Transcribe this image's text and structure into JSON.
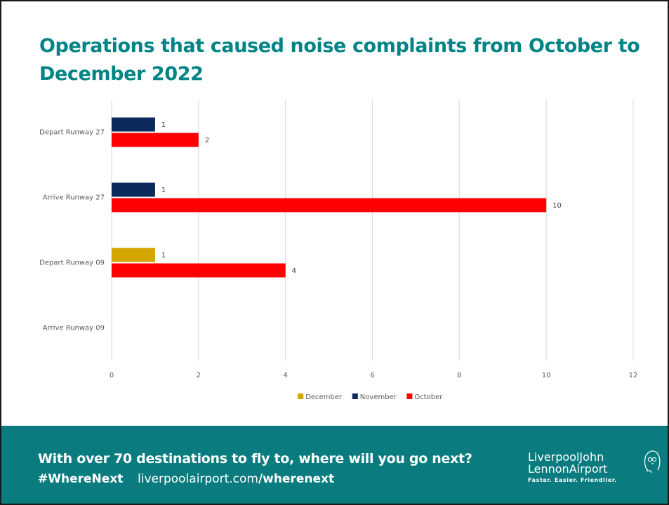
{
  "slide": {
    "title": "Operations that caused noise complaints from October to December 2022"
  },
  "theme": {
    "title_color": "#008486",
    "footer_bg": "#0a7b7f",
    "grid_color": "#d9d9d9",
    "axis_text_color": "#595959"
  },
  "chart_data": {
    "type": "bar",
    "orientation": "horizontal",
    "categories": [
      "Depart Runway 27",
      "Arrive Runway 27",
      "Depart Runway 09",
      "Arrive Runway 09"
    ],
    "series": [
      {
        "name": "December",
        "color": "#d4a400",
        "values": [
          null,
          null,
          1,
          null
        ]
      },
      {
        "name": "November",
        "color": "#0d2a5c",
        "values": [
          1,
          1,
          null,
          null
        ]
      },
      {
        "name": "October",
        "color": "#ff0000",
        "values": [
          2,
          10,
          4,
          null
        ]
      }
    ],
    "xlim": [
      0,
      12
    ],
    "xticks": [
      0,
      2,
      4,
      6,
      8,
      10,
      12
    ],
    "data_labels": true,
    "grid": true,
    "legend_position": "bottom"
  },
  "footer": {
    "tagline": "With over 70 destinations to fly to, where will you go next?",
    "hashtag": "#WhereNext",
    "url_domain": "liverpoolairport.com",
    "url_path": "/wherenext",
    "brand_line1": "LiverpoolJohn",
    "brand_line2": "LennonAirport",
    "brand_motto": "Faster. Easier. Friendlier."
  }
}
